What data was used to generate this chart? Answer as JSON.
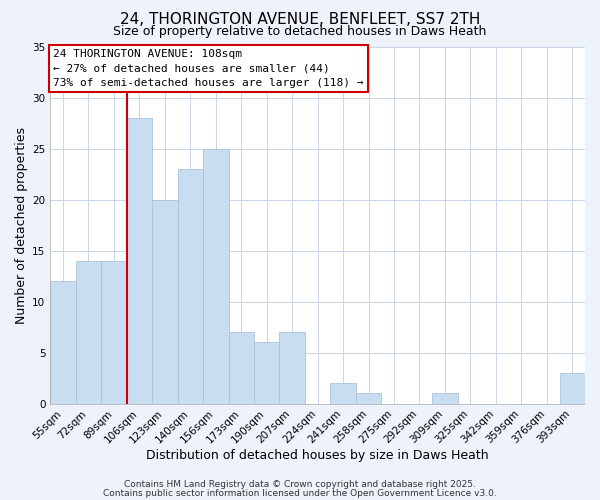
{
  "title": "24, THORINGTON AVENUE, BENFLEET, SS7 2TH",
  "subtitle": "Size of property relative to detached houses in Daws Heath",
  "xlabel": "Distribution of detached houses by size in Daws Heath",
  "ylabel": "Number of detached properties",
  "bar_labels": [
    "55sqm",
    "72sqm",
    "89sqm",
    "106sqm",
    "123sqm",
    "140sqm",
    "156sqm",
    "173sqm",
    "190sqm",
    "207sqm",
    "224sqm",
    "241sqm",
    "258sqm",
    "275sqm",
    "292sqm",
    "309sqm",
    "325sqm",
    "342sqm",
    "359sqm",
    "376sqm",
    "393sqm"
  ],
  "bar_values": [
    12,
    14,
    14,
    28,
    20,
    23,
    25,
    7,
    6,
    7,
    0,
    2,
    1,
    0,
    0,
    1,
    0,
    0,
    0,
    0,
    3
  ],
  "bar_color": "#c9ddf0",
  "bar_edge_color": "#aac4de",
  "vline_index": 3,
  "vline_color": "#cc0000",
  "ylim": [
    0,
    35
  ],
  "yticks": [
    0,
    5,
    10,
    15,
    20,
    25,
    30,
    35
  ],
  "annotation_title": "24 THORINGTON AVENUE: 108sqm",
  "annotation_line1": "← 27% of detached houses are smaller (44)",
  "annotation_line2": "73% of semi-detached houses are larger (118) →",
  "annotation_box_facecolor": "#ffffff",
  "annotation_box_edgecolor": "#cc0000",
  "footer1": "Contains HM Land Registry data © Crown copyright and database right 2025.",
  "footer2": "Contains public sector information licensed under the Open Government Licence v3.0.",
  "background_color": "#eef2fb",
  "plot_background": "#ffffff",
  "grid_color": "#c8d4e8",
  "title_fontsize": 11,
  "subtitle_fontsize": 9,
  "axis_label_fontsize": 9,
  "tick_fontsize": 7.5,
  "annotation_fontsize": 8,
  "footer_fontsize": 6.5
}
